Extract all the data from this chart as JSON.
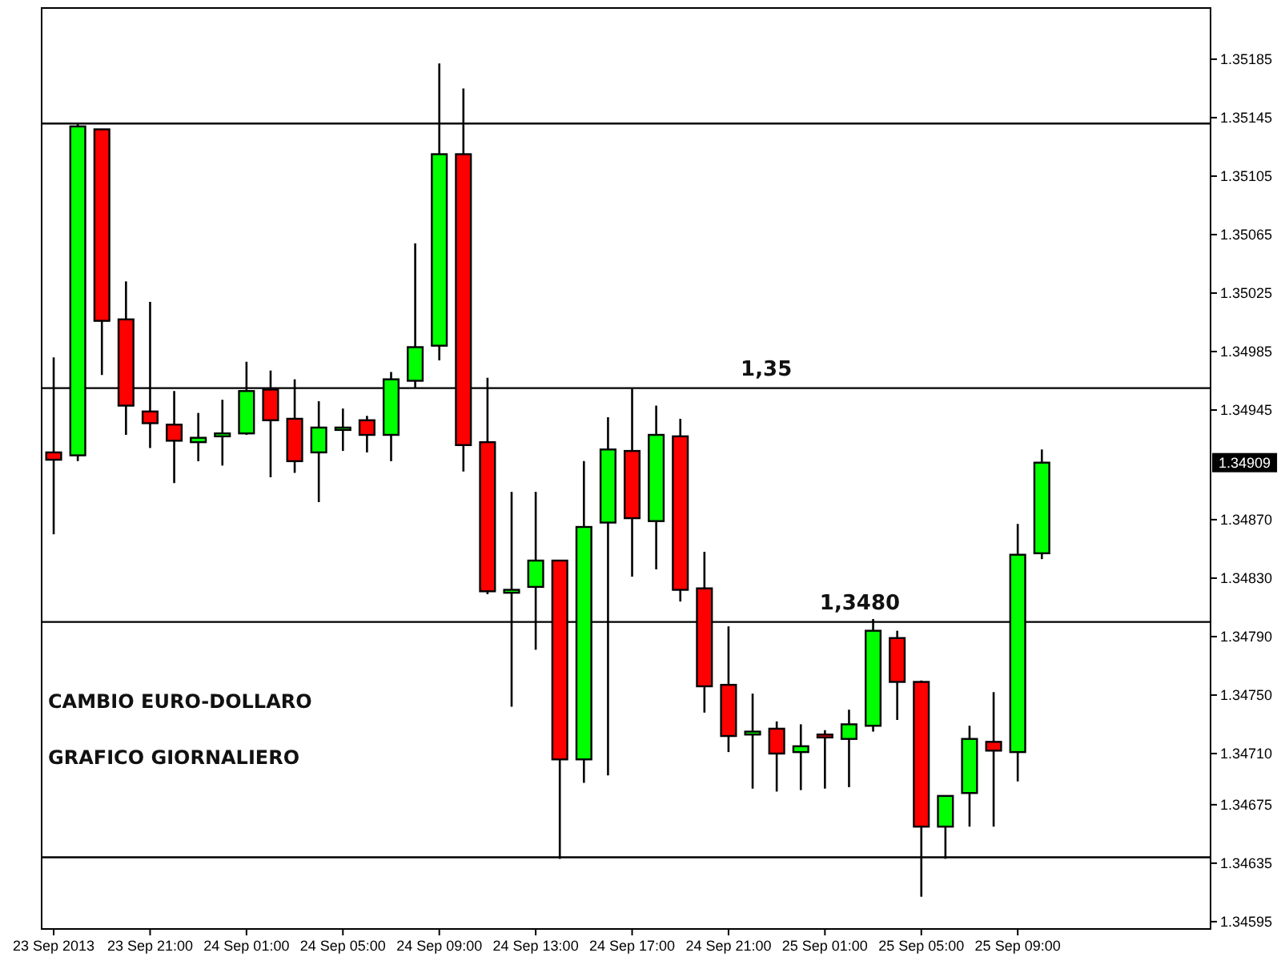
{
  "chart_data": {
    "type": "candlestick",
    "x": [
      "2013-09-23T17:00",
      "2013-09-23T18:00",
      "2013-09-23T19:00",
      "2013-09-23T20:00",
      "2013-09-23T21:00",
      "2013-09-23T22:00",
      "2013-09-23T23:00",
      "2013-09-24T00:00",
      "2013-09-24T01:00",
      "2013-09-24T02:00",
      "2013-09-24T03:00",
      "2013-09-24T04:00",
      "2013-09-24T05:00",
      "2013-09-24T06:00",
      "2013-09-24T07:00",
      "2013-09-24T08:00",
      "2013-09-24T09:00",
      "2013-09-24T10:00",
      "2013-09-24T11:00",
      "2013-09-24T12:00",
      "2013-09-24T13:00",
      "2013-09-24T14:00",
      "2013-09-24T15:00",
      "2013-09-24T16:00",
      "2013-09-24T17:00",
      "2013-09-24T18:00",
      "2013-09-24T19:00",
      "2013-09-24T20:00",
      "2013-09-24T21:00",
      "2013-09-24T22:00",
      "2013-09-24T23:00",
      "2013-09-25T00:00",
      "2013-09-25T01:00",
      "2013-09-25T02:00",
      "2013-09-25T03:00",
      "2013-09-25T04:00",
      "2013-09-25T05:00",
      "2013-09-25T06:00",
      "2013-09-25T07:00",
      "2013-09-25T08:00",
      "2013-09-25T09:00",
      "2013-09-25T10:00"
    ],
    "ohlc": [
      [
        1.34916,
        1.34981,
        1.3486,
        1.34911
      ],
      [
        1.34914,
        1.35141,
        1.3491,
        1.35139
      ],
      [
        1.35137,
        1.35137,
        1.34969,
        1.35006
      ],
      [
        1.35007,
        1.35033,
        1.34928,
        1.34948
      ],
      [
        1.34944,
        1.35019,
        1.34919,
        1.34936
      ],
      [
        1.34935,
        1.34958,
        1.34895,
        1.34924
      ],
      [
        1.34923,
        1.34943,
        1.3491,
        1.34926
      ],
      [
        1.34927,
        1.34952,
        1.34907,
        1.34929
      ],
      [
        1.34929,
        1.34978,
        1.34928,
        1.34958
      ],
      [
        1.34959,
        1.34972,
        1.34899,
        1.34938
      ],
      [
        1.34939,
        1.34966,
        1.34902,
        1.3491
      ],
      [
        1.34916,
        1.34951,
        1.34882,
        1.34933
      ],
      [
        1.34933,
        1.34946,
        1.34917,
        1.34933
      ],
      [
        1.34938,
        1.34941,
        1.34916,
        1.34928
      ],
      [
        1.34928,
        1.34971,
        1.3491,
        1.34966
      ],
      [
        1.34965,
        1.35059,
        1.3496,
        1.34988
      ],
      [
        1.34989,
        1.35182,
        1.34979,
        1.3512
      ],
      [
        1.3512,
        1.35165,
        1.34903,
        1.34921
      ],
      [
        1.34923,
        1.34967,
        1.34819,
        1.34821
      ],
      [
        1.3482,
        1.34889,
        1.34742,
        1.34822
      ],
      [
        1.34824,
        1.34889,
        1.34781,
        1.34842
      ],
      [
        1.34842,
        1.34842,
        1.34638,
        1.34706
      ],
      [
        1.34706,
        1.3491,
        1.3469,
        1.34865
      ],
      [
        1.34868,
        1.3494,
        1.34695,
        1.34918
      ],
      [
        1.34917,
        1.3496,
        1.34831,
        1.34871
      ],
      [
        1.34869,
        1.34948,
        1.34836,
        1.34928
      ],
      [
        1.34927,
        1.34939,
        1.34814,
        1.34822
      ],
      [
        1.34823,
        1.34848,
        1.34738,
        1.34756
      ],
      [
        1.34757,
        1.34797,
        1.34711,
        1.34722
      ],
      [
        1.34723,
        1.34751,
        1.34686,
        1.34725
      ],
      [
        1.34727,
        1.34732,
        1.34684,
        1.3471
      ],
      [
        1.34711,
        1.3473,
        1.34685,
        1.34715
      ],
      [
        1.34723,
        1.34726,
        1.34686,
        1.34721
      ],
      [
        1.3472,
        1.3474,
        1.34687,
        1.3473
      ],
      [
        1.34729,
        1.34802,
        1.34725,
        1.34794
      ],
      [
        1.34789,
        1.34794,
        1.34733,
        1.34759
      ],
      [
        1.34759,
        1.3476,
        1.34612,
        1.3466
      ],
      [
        1.3466,
        1.34681,
        1.34638,
        1.34681
      ],
      [
        1.34683,
        1.34729,
        1.3466,
        1.3472
      ],
      [
        1.34718,
        1.34752,
        1.3466,
        1.34712
      ],
      [
        1.34711,
        1.34867,
        1.34691,
        1.34846
      ],
      [
        1.34847,
        1.34918,
        1.34843,
        1.34909
      ]
    ],
    "colors": [
      "#ff0000",
      "#00ff00",
      "#ff0000",
      "#ff0000",
      "#ff0000",
      "#ff0000",
      "#00ff00",
      "#00ff00",
      "#00ff00",
      "#ff0000",
      "#ff0000",
      "#00ff00",
      "#00ff00",
      "#ff0000",
      "#00ff00",
      "#00ff00",
      "#00ff00",
      "#ff0000",
      "#ff0000",
      "#00ff00",
      "#00ff00",
      "#ff0000",
      "#00ff00",
      "#00ff00",
      "#ff0000",
      "#00ff00",
      "#ff0000",
      "#ff0000",
      "#ff0000",
      "#00ff00",
      "#ff0000",
      "#00ff00",
      "#ff0000",
      "#00ff00",
      "#00ff00",
      "#ff0000",
      "#ff0000",
      "#00ff00",
      "#00ff00",
      "#ff0000",
      "#00ff00",
      "#00ff00"
    ],
    "xlim": [
      "2013-09-23T16:30",
      "2013-09-25T17:00"
    ],
    "xticks": [
      {
        "value": "2013-09-23T17:00",
        "label": "23 Sep 2013"
      },
      {
        "value": "2013-09-23T21:00",
        "label": "23 Sep 21:00"
      },
      {
        "value": "2013-09-24T01:00",
        "label": "24 Sep 01:00"
      },
      {
        "value": "2013-09-24T05:00",
        "label": "24 Sep 05:00"
      },
      {
        "value": "2013-09-24T09:00",
        "label": "24 Sep 09:00"
      },
      {
        "value": "2013-09-24T13:00",
        "label": "24 Sep 13:00"
      },
      {
        "value": "2013-09-24T17:00",
        "label": "24 Sep 17:00"
      },
      {
        "value": "2013-09-24T21:00",
        "label": "24 Sep 21:00"
      },
      {
        "value": "2013-09-25T01:00",
        "label": "25 Sep 01:00"
      },
      {
        "value": "2013-09-25T05:00",
        "label": "25 Sep 05:00"
      },
      {
        "value": "2013-09-25T09:00",
        "label": "25 Sep 09:00"
      }
    ],
    "ylim": [
      1.3459,
      1.3522
    ],
    "yticks": [
      1.35185,
      1.35145,
      1.35105,
      1.35065,
      1.35025,
      1.34985,
      1.34945,
      {
        "value": 1.3487,
        "label": "1.34870"
      },
      {
        "value": 1.3483,
        "label": "1.34830"
      },
      {
        "value": 1.3479,
        "label": "1.34790"
      },
      {
        "value": 1.3475,
        "label": "1.34750"
      },
      {
        "value": 1.3471,
        "label": "1.34710"
      },
      1.34675,
      1.34635,
      1.34595
    ],
    "ref_lines": [
      {
        "axis": "y",
        "value": 1.35141,
        "label": null
      },
      {
        "axis": "y",
        "value": 1.3496,
        "label": "1,35"
      },
      {
        "axis": "y",
        "value": 1.348,
        "label": "1,3480"
      },
      {
        "axis": "y",
        "value": 1.34639,
        "label": null
      }
    ],
    "annotations": [
      "CAMBIO EURO-DOLLARO",
      "GRAFICO GIORNALIERO",
      "1.34909"
    ],
    "grid": false
  }
}
